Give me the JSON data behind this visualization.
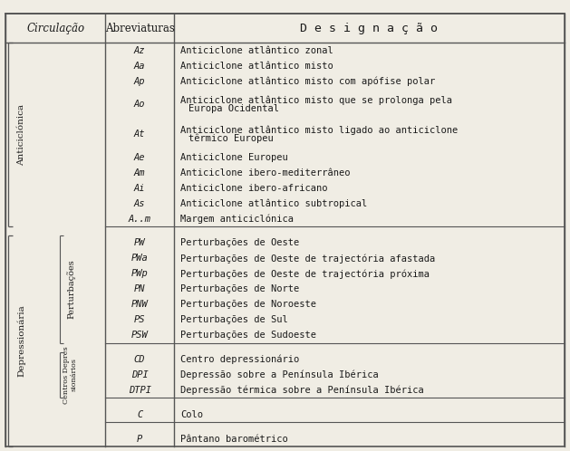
{
  "title": "",
  "bg_color": "#f0ede4",
  "header_row": [
    "Circulação",
    "Abreviaturas",
    "D e s i g n a ç ã o"
  ],
  "rows": [
    [
      "Az",
      "Anticiclone atlântico zonal"
    ],
    [
      "Aa",
      "Anticiclone atlântico misto"
    ],
    [
      "Ap",
      "Anticiclone atlântico misto com apófise polar"
    ],
    [
      "Ao",
      "Anticiclone atlântico misto que se prolonga pela\n   Europa Ocidental"
    ],
    [
      "At",
      "Anticiclone atlântico misto ligado ao anticiclone\n   têrmico Europeu"
    ],
    [
      "Ae",
      "Anticiclone Europeu"
    ],
    [
      "Am",
      "Anticiclone ibero-mediterrâneo"
    ],
    [
      "Ai",
      "Anticiclone ibero-africano"
    ],
    [
      "As",
      "Anticiclone atlântico subtropical"
    ],
    [
      "A..m",
      "Margem anticiclónica"
    ],
    [
      "",
      ""
    ],
    [
      "PW",
      "Perturbações de Oeste"
    ],
    [
      "PWa",
      "Perturbações de Oeste de trajectória afastada"
    ],
    [
      "PWp",
      "Perturbações de Oeste de trajectória próxima"
    ],
    [
      "PN",
      "Perturbações de Norte"
    ],
    [
      "PNW",
      "Perturbações de Noroeste"
    ],
    [
      "PS",
      "Perturbações de Sul"
    ],
    [
      "PSW",
      "Perturbações de Sudoeste"
    ],
    [
      "",
      ""
    ],
    [
      "CD",
      "Centro depressionário"
    ],
    [
      "DPI",
      "Depressão sobre a Península Ibérica"
    ],
    [
      "DTPI",
      "Depressão térmica sobre a Península Ibérica"
    ],
    [
      "",
      ""
    ],
    [
      "C",
      "Colo"
    ],
    [
      "",
      ""
    ],
    [
      "P",
      "Pântano barométrico"
    ]
  ],
  "font_family": "monospace",
  "font_size": 7.5,
  "header_font_size": 8.5,
  "text_color": "#1a1a1a",
  "line_color": "#555555"
}
